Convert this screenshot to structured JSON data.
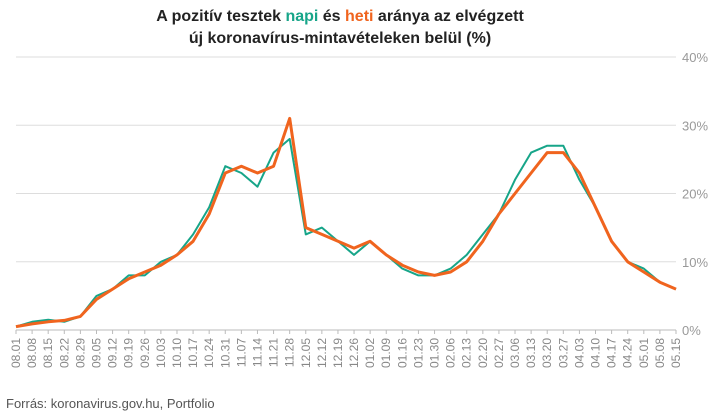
{
  "title": {
    "line1_a": "A pozitív tesztek ",
    "line1_napi": "napi",
    "line1_b": " és ",
    "line1_heti": "heti",
    "line1_c": " aránya az elvégzett",
    "line2": "új koronavírus-mintavételeken belül (%)"
  },
  "source": "Forrás: koronavirus.gov.hu, Portfolio",
  "colors": {
    "daily": "#17a589",
    "weekly": "#f0641e",
    "grid": "#dddddd"
  },
  "chart_data": {
    "type": "line",
    "title": "A pozitív tesztek napi és heti aránya az elvégzett új koronavírus-mintavételeken belül (%)",
    "xlabel": "",
    "ylabel": "",
    "ylim": [
      0,
      40
    ],
    "y_ticks": [
      "0%",
      "10%",
      "20%",
      "30%",
      "40%"
    ],
    "y_tick_values": [
      0,
      10,
      20,
      30,
      40
    ],
    "x_tick_labels": [
      "08.01",
      "08.08",
      "08.15",
      "08.22",
      "08.29",
      "09.05",
      "09.12",
      "09.19",
      "09.26",
      "10.03",
      "10.10",
      "10.17",
      "10.24",
      "10.31",
      "11.07",
      "11.14",
      "11.21",
      "11.28",
      "12.05",
      "12.12",
      "12.19",
      "12.26",
      "01.02",
      "01.09",
      "01.16",
      "01.23",
      "01.30",
      "02.06",
      "02.13",
      "02.20",
      "02.27",
      "03.06",
      "03.13",
      "03.20",
      "03.27",
      "04.03",
      "04.10",
      "04.17",
      "04.24",
      "05.01",
      "05.08",
      "05.15"
    ],
    "grid": true,
    "legend": "in title",
    "series": [
      {
        "name": "napi",
        "weeks": [
          0,
          1,
          2,
          3,
          4,
          5,
          6,
          7,
          8,
          9,
          10,
          11,
          12,
          13,
          14,
          15,
          16,
          17,
          18,
          19,
          20,
          21,
          22,
          23,
          24,
          25,
          26,
          27,
          28,
          29,
          30,
          31,
          32,
          33,
          34,
          35,
          36,
          37,
          38,
          39,
          40,
          41
        ],
        "values": [
          0.5,
          1.2,
          1.5,
          1.2,
          2,
          5,
          6,
          8,
          8,
          10,
          11,
          14,
          18,
          24,
          23,
          21,
          26,
          28,
          14,
          15,
          13,
          11,
          13,
          11,
          9,
          8,
          8,
          9,
          11,
          14,
          17,
          22,
          26,
          27,
          27,
          22,
          18,
          13,
          10,
          9,
          7,
          6
        ]
      },
      {
        "name": "heti",
        "weeks": [
          0,
          1,
          2,
          3,
          4,
          5,
          6,
          7,
          8,
          9,
          10,
          11,
          12,
          13,
          14,
          15,
          16,
          17,
          18,
          19,
          20,
          21,
          22,
          23,
          24,
          25,
          26,
          27,
          28,
          29,
          30,
          31,
          32,
          33,
          34,
          35,
          36,
          37,
          38,
          39,
          40,
          41
        ],
        "values": [
          0.5,
          0.9,
          1.2,
          1.4,
          2,
          4.5,
          6,
          7.5,
          8.5,
          9.5,
          11,
          13,
          17,
          23,
          24,
          23,
          24,
          31,
          15,
          14,
          13,
          12,
          13,
          11,
          9.5,
          8.5,
          8,
          8.5,
          10,
          13,
          17,
          20,
          23,
          26,
          26,
          23,
          18,
          13,
          10,
          8.5,
          7,
          6
        ]
      }
    ]
  }
}
